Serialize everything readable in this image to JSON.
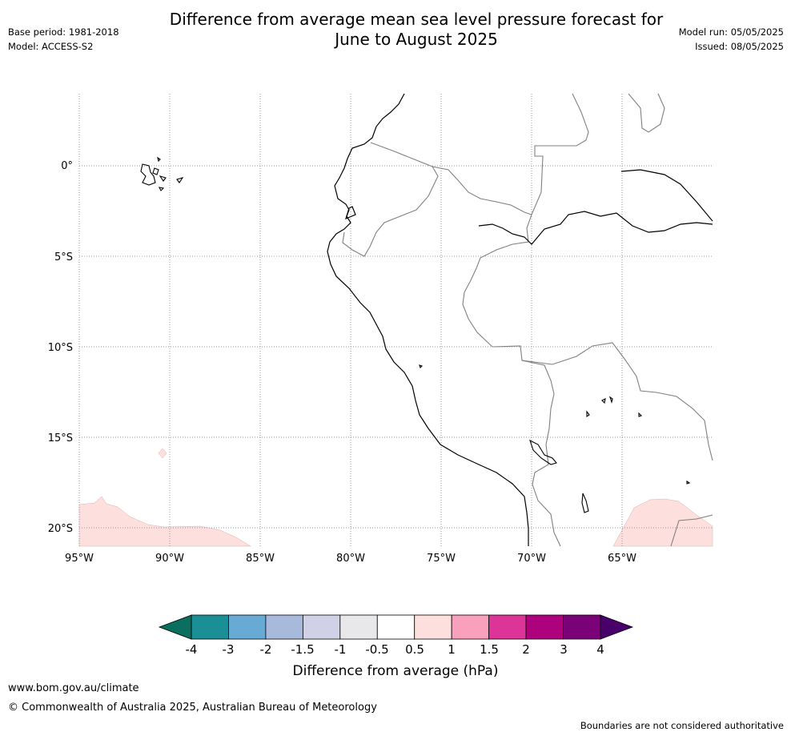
{
  "title_line1": "Difference from average mean sea level pressure forecast for",
  "title_line2": "June to August 2025",
  "base_period": "Base period: 1981-2018",
  "model": "Model: ACCESS-S2",
  "model_run": "Model run: 05/05/2025",
  "issued": "Issued: 08/05/2025",
  "map": {
    "lon_labels": [
      "95°W",
      "90°W",
      "85°W",
      "80°W",
      "75°W",
      "70°W",
      "65°W"
    ],
    "lat_labels": [
      "0°",
      "5°S",
      "10°S",
      "15°S",
      "20°S"
    ],
    "coastline_color": "#000000",
    "border_color": "#808080",
    "gridline_color": "#999999"
  },
  "colorbar": {
    "label": "Difference from average (hPa)",
    "tick_labels": [
      "-4",
      "-3",
      "-2",
      "-1.5",
      "-1",
      "-0.5",
      "0.5",
      "1",
      "1.5",
      "2",
      "3",
      "4"
    ],
    "bins": [
      {
        "from": "-4",
        "to": "-3",
        "color": "#1a9096"
      },
      {
        "from": "-3",
        "to": "-2",
        "color": "#67aad3"
      },
      {
        "from": "-2",
        "to": "-1.5",
        "color": "#a8badb"
      },
      {
        "from": "-1.5",
        "to": "-1",
        "color": "#d0d1e6"
      },
      {
        "from": "-1",
        "to": "-0.5",
        "color": "#e8e8ea"
      },
      {
        "from": "-0.5",
        "to": "0.5",
        "color": "#ffffff"
      },
      {
        "from": "0.5",
        "to": "1",
        "color": "#fde0dd"
      },
      {
        "from": "1",
        "to": "1.5",
        "color": "#f9a0bc"
      },
      {
        "from": "1.5",
        "to": "2",
        "color": "#dd3497"
      },
      {
        "from": "2",
        "to": "3",
        "color": "#ae017e"
      },
      {
        "from": "3",
        "to": "4",
        "color": "#7a0177"
      }
    ],
    "extend_low_color": "#0b6f60",
    "extend_high_color": "#49006a"
  },
  "footer_url": "www.bom.gov.au/climate",
  "footer_copyright": "© Commonwealth of Australia 2025, Australian Bureau of Meteorology",
  "footer_note": "Boundaries are not considered authoritative"
}
